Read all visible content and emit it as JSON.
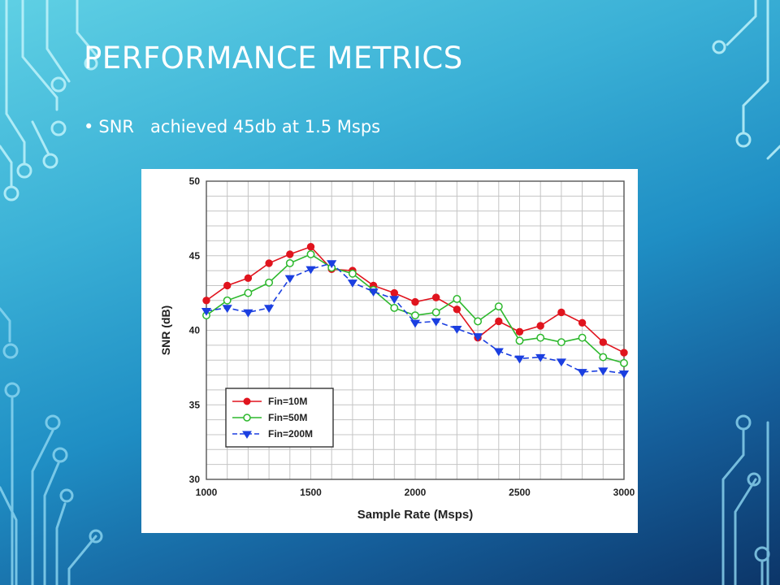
{
  "slide": {
    "title": "PERFORMANCE METRICS",
    "bullet": "SNR   achieved 45db at 1.5 Msps"
  },
  "chart_data": {
    "type": "line",
    "title": "",
    "xlabel": "Sample Rate (Msps)",
    "ylabel": "SNR (dB)",
    "xlim": [
      1000,
      3000
    ],
    "ylim": [
      30,
      50
    ],
    "xticks": [
      1000,
      1500,
      2000,
      2500,
      3000
    ],
    "yticks": [
      30,
      35,
      40,
      45,
      50
    ],
    "grid": true,
    "legend_position": "bottom-left",
    "x": [
      1000,
      1100,
      1200,
      1300,
      1400,
      1500,
      1600,
      1700,
      1800,
      1900,
      2000,
      2100,
      2200,
      2300,
      2400,
      2500,
      2600,
      2700,
      2800,
      2900,
      3000
    ],
    "series": [
      {
        "name": "Fin=10M",
        "color": "#e0141e",
        "marker": "filled-circle",
        "line": "solid",
        "values": [
          42.0,
          43.0,
          43.5,
          44.5,
          45.1,
          45.6,
          44.1,
          44.0,
          43.0,
          42.5,
          41.9,
          42.2,
          41.4,
          39.5,
          40.6,
          39.9,
          40.3,
          41.2,
          40.5,
          39.2,
          38.5
        ]
      },
      {
        "name": "Fin=50M",
        "color": "#2db82d",
        "marker": "open-circle",
        "line": "solid",
        "values": [
          41.0,
          42.0,
          42.5,
          43.2,
          44.5,
          45.1,
          44.2,
          43.8,
          42.7,
          41.5,
          41.0,
          41.2,
          42.1,
          40.6,
          41.6,
          39.3,
          39.5,
          39.2,
          39.5,
          38.2,
          37.8
        ]
      },
      {
        "name": "Fin=200M",
        "color": "#1b3fe0",
        "marker": "filled-triangle-down",
        "line": "dashed",
        "values": [
          41.3,
          41.5,
          41.2,
          41.5,
          43.5,
          44.1,
          44.5,
          43.2,
          42.6,
          42.1,
          40.5,
          40.6,
          40.1,
          39.6,
          38.6,
          38.1,
          38.2,
          37.9,
          37.2,
          37.3,
          37.1
        ]
      }
    ]
  }
}
